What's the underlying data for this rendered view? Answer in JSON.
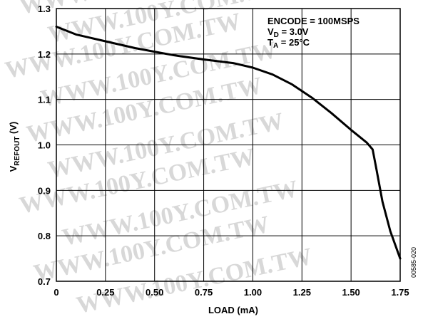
{
  "chart_data": {
    "type": "line",
    "xlabel": "LOAD (mA)",
    "ylabel_main": "V",
    "ylabel_sub": "REFOUT",
    "ylabel_unit": " (V)",
    "xlim": [
      0,
      1.75
    ],
    "ylim": [
      0.7,
      1.3
    ],
    "grid": true,
    "x_ticks": [
      "0",
      "0.25",
      "0.50",
      "0.75",
      "1.00",
      "1.25",
      "1.50",
      "1.75"
    ],
    "y_ticks": [
      "0.7",
      "0.8",
      "0.9",
      "1.0",
      "1.1",
      "1.2",
      "1.3"
    ],
    "series": [
      {
        "x": [
          0,
          0.1,
          0.25,
          0.4,
          0.5,
          0.6,
          0.75,
          0.9,
          1.0,
          1.1,
          1.2,
          1.3,
          1.4,
          1.5,
          1.58,
          1.61,
          1.63,
          1.66,
          1.7,
          1.75
        ],
        "y": [
          1.26,
          1.243,
          1.228,
          1.213,
          1.205,
          1.197,
          1.188,
          1.18,
          1.17,
          1.155,
          1.133,
          1.104,
          1.07,
          1.033,
          1.005,
          0.99,
          0.945,
          0.875,
          0.81,
          0.75
        ]
      }
    ],
    "annotations": {
      "line1": "ENCODE = 100MSPS",
      "line2_main": "V",
      "line2_sub": "D",
      "line2_rest": " = 3.0V",
      "line3_main": "T",
      "line3_sub": "A",
      "line3_rest": " = 25°C"
    },
    "figure_id": "00585-020",
    "watermark": "WWW.100Y.COM.TW"
  }
}
